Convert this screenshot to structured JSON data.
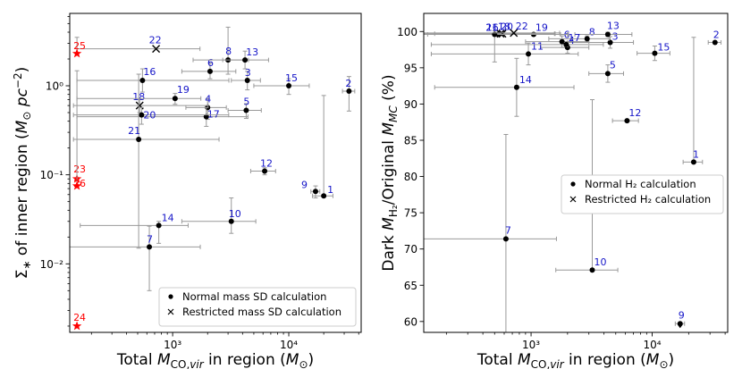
{
  "chart_data": [
    {
      "type": "scatter",
      "panel": "left",
      "xscale": "log",
      "yscale": "log",
      "xlim": [
        130,
        42000
      ],
      "ylim": [
        0.0017,
        6.5
      ],
      "xticks": [
        {
          "value": 1000,
          "label": "10³"
        },
        {
          "value": 10000,
          "label": "10⁴"
        }
      ],
      "yticks": [
        {
          "value": 0.01,
          "label": "10⁻²"
        },
        {
          "value": 0.1,
          "label": "10⁻¹"
        },
        {
          "value": 1,
          "label": "10⁰"
        }
      ],
      "xlabel": "Total M_CO,vir in region (M⊙)",
      "ylabel": "Σ* of inner region (M⊙ pc⁻²)",
      "legend": {
        "location": "lower right",
        "entries": [
          {
            "marker": "dot",
            "label": "Normal mass SD calculation"
          },
          {
            "marker": "x",
            "label": "Restricted mass SD calculation"
          }
        ]
      },
      "colors": {
        "normal": "#000000",
        "label": "#1515c8",
        "upper_limit": "#ff0000",
        "errorbar": "#999999"
      },
      "points": [
        {
          "id": "1",
          "x": 20000,
          "y": 0.058,
          "xerr": [
            4000,
            4000
          ],
          "yerr": [
            0.0,
            0.72
          ],
          "marker": "dot"
        },
        {
          "id": "2",
          "x": 33000,
          "y": 0.87,
          "xerr": [
            4000,
            4000
          ],
          "yerr": [
            0.35,
            0.4
          ],
          "marker": "dot"
        },
        {
          "id": "3",
          "x": 4400,
          "y": 1.15,
          "xerr": [
            1200,
            1300
          ],
          "yerr": [
            0.25,
            0.3
          ],
          "marker": "dot"
        },
        {
          "id": "4",
          "x": 2000,
          "y": 0.57,
          "xerr": [
            700,
            900
          ],
          "yerr": [
            0.15,
            0.15
          ],
          "marker": "dot"
        },
        {
          "id": "5",
          "x": 4300,
          "y": 0.53,
          "xerr": [
            1300,
            1500
          ],
          "yerr": [
            0.1,
            0.1
          ],
          "marker": "dot"
        },
        {
          "id": "6",
          "x": 2100,
          "y": 1.45,
          "xerr": [
            900,
            1400
          ],
          "yerr": [
            0.25,
            0.35
          ],
          "marker": "dot"
        },
        {
          "id": "7",
          "x": 630,
          "y": 0.0155,
          "xerr": [
            500,
            1100
          ],
          "yerr": [
            0.0105,
            0.011
          ],
          "marker": "dot"
        },
        {
          "id": "8",
          "x": 3000,
          "y": 1.95,
          "xerr": [
            1500,
            1500
          ],
          "yerr": [
            0.6,
            2.6
          ],
          "marker": "dot"
        },
        {
          "id": "9",
          "x": 17000,
          "y": 0.065,
          "xerr": [
            1500,
            1500
          ],
          "yerr": [
            0.01,
            0.01
          ],
          "marker": "dot"
        },
        {
          "id": "10",
          "x": 3200,
          "y": 0.03,
          "xerr": [
            2000,
            2000
          ],
          "yerr": [
            0.008,
            0.025
          ],
          "marker": "dot"
        },
        {
          "id": "12",
          "x": 6200,
          "y": 0.11,
          "xerr": [
            1500,
            1500
          ],
          "yerr": [
            0.01,
            0.01
          ],
          "marker": "dot"
        },
        {
          "id": "13",
          "x": 4200,
          "y": 1.95,
          "xerr": [
            1500,
            2500
          ],
          "yerr": [
            0.4,
            0.5
          ],
          "marker": "dot"
        },
        {
          "id": "14",
          "x": 760,
          "y": 0.027,
          "xerr": [
            600,
            600
          ],
          "yerr": [
            0.01,
            0.003
          ],
          "marker": "dot"
        },
        {
          "id": "15",
          "x": 10000,
          "y": 1.0,
          "xerr": [
            5000,
            5000
          ],
          "yerr": [
            0.2,
            0.2
          ],
          "marker": "dot"
        },
        {
          "id": "16",
          "x": 550,
          "y": 1.15,
          "xerr": [
            400,
            2500
          ],
          "yerr": [
            0.3,
            0.4
          ],
          "marker": "dot"
        },
        {
          "id": "17",
          "x": 1950,
          "y": 0.45,
          "xerr": [
            1800,
            2500
          ],
          "yerr": [
            0.1,
            0.12
          ],
          "marker": "dot"
        },
        {
          "id": "18",
          "x": 520,
          "y": 0.6,
          "xerr": [
            380,
            1500
          ],
          "yerr": [
            0.1,
            0.1
          ],
          "marker": "x"
        },
        {
          "id": "19",
          "x": 1050,
          "y": 0.72,
          "xerr": [
            900,
            700
          ],
          "yerr": [
            0.1,
            0.1
          ],
          "marker": "dot"
        },
        {
          "id": "20",
          "x": 540,
          "y": 0.47,
          "xerr": [
            400,
            2500
          ],
          "yerr": [
            0.1,
            0.1
          ],
          "marker": "dot"
        },
        {
          "id": "21",
          "x": 510,
          "y": 0.25,
          "xerr": [
            370,
            2000
          ],
          "yerr": [
            0.235,
            1.1
          ],
          "marker": "dot"
        },
        {
          "id": "22",
          "x": 720,
          "y": 2.6,
          "xerr": [
            570,
            1000
          ],
          "yerr": [
            0.0,
            0.0
          ],
          "marker": "x"
        },
        {
          "id": "23",
          "x": 150,
          "y": 0.09,
          "marker": "star",
          "color": "#ff0000"
        },
        {
          "id": "24",
          "x": 150,
          "y": 0.002,
          "marker": "star",
          "color": "#ff0000"
        },
        {
          "id": "25",
          "x": 150,
          "y": 2.3,
          "yerr": [
            0.0,
            1.2
          ],
          "marker": "star",
          "color": "#ff0000"
        },
        {
          "id": "26",
          "x": 150,
          "y": 0.075,
          "yerr": [
            0.0,
            1.4
          ],
          "marker": "star",
          "color": "#ff0000"
        }
      ]
    },
    {
      "type": "scatter",
      "panel": "right",
      "xscale": "log",
      "yscale": "linear",
      "xlim": [
        130,
        42000
      ],
      "ylim": [
        58.5,
        102.5
      ],
      "xticks": [
        {
          "value": 1000,
          "label": "10³"
        },
        {
          "value": 10000,
          "label": "10⁴"
        }
      ],
      "yticks": [
        {
          "value": 60,
          "label": "60"
        },
        {
          "value": 65,
          "label": "65"
        },
        {
          "value": 70,
          "label": "70"
        },
        {
          "value": 75,
          "label": "75"
        },
        {
          "value": 80,
          "label": "80"
        },
        {
          "value": 85,
          "label": "85"
        },
        {
          "value": 90,
          "label": "90"
        },
        {
          "value": 95,
          "label": "95"
        },
        {
          "value": 100,
          "label": "100"
        }
      ],
      "xlabel": "Total M_CO,vir in region (M⊙)",
      "ylabel": "Dark M_H2/Original M_MC (%)",
      "legend": {
        "location": "center right",
        "entries": [
          {
            "marker": "dot",
            "label": "Normal H₂ calculation"
          },
          {
            "marker": "x",
            "label": "Restricted H₂ calculation"
          }
        ]
      },
      "colors": {
        "normal": "#000000",
        "label": "#1515c8",
        "errorbar": "#999999"
      },
      "points": [
        {
          "id": "1",
          "x": 22000,
          "y": 82.0,
          "xerr": [
            4000,
            4000
          ],
          "yerr": [
            0.0,
            17.2
          ],
          "marker": "dot"
        },
        {
          "id": "2",
          "x": 33000,
          "y": 98.5,
          "xerr": [
            4000,
            4000
          ],
          "yerr": [
            0.0,
            0.0
          ],
          "marker": "dot"
        },
        {
          "id": "3",
          "x": 4500,
          "y": 98.5,
          "xerr": [
            2500,
            2500
          ],
          "yerr": [
            0.8,
            0.8
          ],
          "marker": "dot"
        },
        {
          "id": "4",
          "x": 2000,
          "y": 97.8,
          "xerr": [
            800,
            1000
          ],
          "yerr": [
            0.8,
            0.8
          ],
          "marker": "dot"
        },
        {
          "id": "5",
          "x": 4300,
          "y": 94.2,
          "xerr": [
            1300,
            1500
          ],
          "yerr": [
            1.2,
            1.2
          ],
          "marker": "dot"
        },
        {
          "id": "6",
          "x": 1800,
          "y": 98.6,
          "xerr": [
            900,
            1200
          ],
          "yerr": [
            0.8,
            0.8
          ],
          "marker": "dot"
        },
        {
          "id": "7",
          "x": 620,
          "y": 71.4,
          "xerr": [
            490,
            1000
          ],
          "yerr": [
            14.0,
            14.4
          ],
          "marker": "dot"
        },
        {
          "id": "8",
          "x": 2900,
          "y": 99.0,
          "xerr": [
            1500,
            1500
          ],
          "yerr": [
            0.4,
            0.4
          ],
          "marker": "dot"
        },
        {
          "id": "9",
          "x": 17000,
          "y": 59.7,
          "xerr": [
            1500,
            1500
          ],
          "yerr": [
            0.0,
            0.0
          ],
          "marker": "dot"
        },
        {
          "id": "10",
          "x": 3200,
          "y": 67.1,
          "xerr": [
            1600,
            2000
          ],
          "yerr": [
            0.0,
            23.5
          ],
          "marker": "dot"
        },
        {
          "id": "11",
          "x": 950,
          "y": 96.9,
          "xerr": [
            800,
            1500
          ],
          "yerr": [
            1.5,
            1.5
          ],
          "marker": "dot"
        },
        {
          "id": "12",
          "x": 6200,
          "y": 87.7,
          "xerr": [
            1500,
            1500
          ],
          "yerr": [
            0.0,
            0.0
          ],
          "marker": "dot"
        },
        {
          "id": "13",
          "x": 4300,
          "y": 99.6,
          "xerr": [
            2000,
            2500
          ],
          "yerr": [
            0.3,
            0.3
          ],
          "marker": "dot"
        },
        {
          "id": "14",
          "x": 760,
          "y": 92.3,
          "xerr": [
            600,
            1500
          ],
          "yerr": [
            4.0,
            4.0
          ],
          "marker": "dot"
        },
        {
          "id": "15",
          "x": 10500,
          "y": 97.0,
          "xerr": [
            3000,
            3500
          ],
          "yerr": [
            1.0,
            1.0
          ],
          "marker": "dot"
        },
        {
          "id": "16",
          "x": 540,
          "y": 99.6,
          "xerr": [
            400,
            1500
          ],
          "yerr": [
            0.3,
            0.3
          ],
          "marker": "dot"
        },
        {
          "id": "17",
          "x": 1950,
          "y": 98.2,
          "xerr": [
            1800,
            2000
          ],
          "yerr": [
            0.3,
            0.3
          ],
          "marker": "dot"
        },
        {
          "id": "18",
          "x": 560,
          "y": 99.7,
          "xerr": [
            400,
            1000
          ],
          "yerr": [
            0.0,
            0.0
          ],
          "marker": "x"
        },
        {
          "id": "19",
          "x": 1050,
          "y": 99.6,
          "xerr": [
            920,
            700
          ],
          "yerr": [
            0.2,
            0.2
          ],
          "marker": "dot"
        },
        {
          "id": "20",
          "x": 580,
          "y": 99.7,
          "xerr": [
            450,
            1000
          ],
          "yerr": [
            0.0,
            0.0
          ],
          "marker": "x"
        },
        {
          "id": "21",
          "x": 500,
          "y": 99.6,
          "xerr": [
            370,
            1500
          ],
          "yerr": [
            3.8,
            0.5
          ],
          "marker": "dot"
        },
        {
          "id": "22",
          "x": 720,
          "y": 99.8,
          "xerr": [
            590,
            1000
          ],
          "yerr": [
            0.0,
            0.0
          ],
          "marker": "x"
        }
      ]
    }
  ]
}
